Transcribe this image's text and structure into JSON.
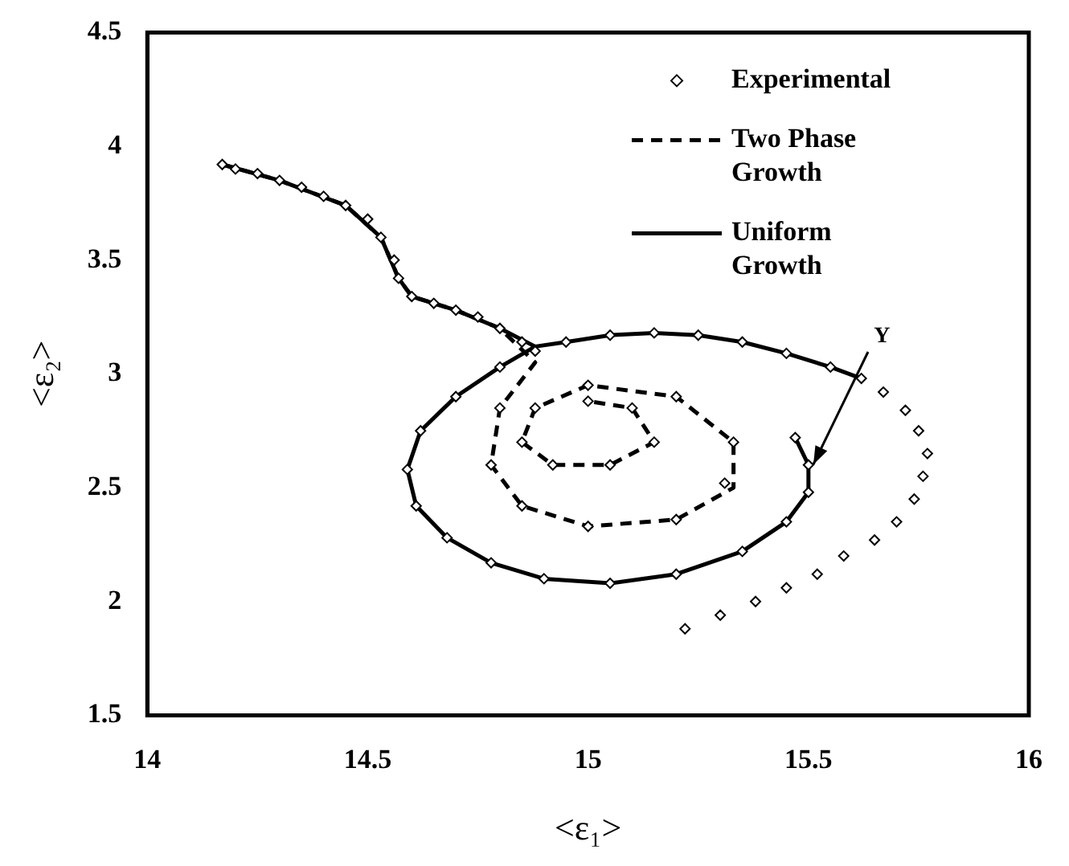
{
  "chart_data": {
    "type": "line",
    "xlabel": "<ε₁>",
    "ylabel": "<ε₂>",
    "xlim": [
      14,
      16
    ],
    "xticks": [
      14,
      14.5,
      15,
      15.5,
      16
    ],
    "ylim": [
      1.5,
      4.5
    ],
    "yticks": [
      1.5,
      2,
      2.5,
      3,
      3.5,
      4,
      4.5
    ],
    "grid": false,
    "legend": "top right",
    "annotations": [
      {
        "text": "Y",
        "x": 15.51,
        "y": 2.6
      }
    ],
    "series": [
      {
        "name": "Experimental",
        "type": "scatter",
        "marker": "diamond",
        "color": "#000000",
        "x": [
          14.17,
          14.2,
          14.25,
          14.3,
          14.35,
          14.4,
          14.45,
          14.5,
          14.53,
          14.56,
          14.57,
          14.6,
          14.65,
          14.7,
          14.75,
          14.8,
          14.85,
          14.88,
          14.95,
          15.05,
          15.15,
          15.25,
          15.35,
          15.45,
          15.55,
          15.62,
          15.67,
          15.72,
          15.75,
          15.77,
          15.76,
          15.74,
          15.7,
          15.65,
          15.58,
          15.52,
          15.45,
          15.38,
          15.3,
          15.22,
          15.47,
          15.5,
          15.5,
          15.45,
          15.35,
          15.2,
          15.05,
          14.9,
          14.78,
          14.68,
          14.61,
          14.59,
          14.62,
          14.7,
          14.8,
          14.8,
          14.78,
          14.85,
          15.0,
          15.2,
          15.31,
          15.33,
          15.2,
          15.0,
          14.88,
          14.85,
          14.92,
          15.05,
          15.15,
          15.1,
          15.0
        ],
        "values": [
          3.92,
          3.9,
          3.88,
          3.85,
          3.82,
          3.78,
          3.74,
          3.68,
          3.6,
          3.5,
          3.42,
          3.34,
          3.31,
          3.28,
          3.25,
          3.2,
          3.14,
          3.1,
          3.14,
          3.17,
          3.18,
          3.17,
          3.14,
          3.09,
          3.03,
          2.98,
          2.92,
          2.84,
          2.75,
          2.65,
          2.55,
          2.45,
          2.35,
          2.27,
          2.2,
          2.12,
          2.06,
          2.0,
          1.94,
          1.88,
          2.72,
          2.6,
          2.48,
          2.35,
          2.22,
          2.12,
          2.08,
          2.1,
          2.17,
          2.28,
          2.42,
          2.58,
          2.75,
          2.9,
          3.03,
          2.85,
          2.6,
          2.42,
          2.33,
          2.36,
          2.52,
          2.7,
          2.9,
          2.95,
          2.85,
          2.7,
          2.6,
          2.6,
          2.7,
          2.85,
          2.88
        ]
      },
      {
        "name": "Two Phase Growth",
        "type": "line",
        "line_style": "dashed",
        "marker": "none",
        "color": "#000000",
        "x": [
          14.17,
          14.3,
          14.45,
          14.53,
          14.57,
          14.6,
          14.7,
          14.8,
          14.88,
          14.8,
          14.78,
          14.85,
          15.0,
          15.2,
          15.33,
          15.33,
          15.2,
          15.0,
          14.88,
          14.85,
          14.92,
          15.05,
          15.15,
          15.1,
          15.0
        ],
        "values": [
          3.92,
          3.85,
          3.74,
          3.6,
          3.42,
          3.34,
          3.28,
          3.2,
          3.05,
          2.85,
          2.6,
          2.42,
          2.33,
          2.36,
          2.5,
          2.7,
          2.9,
          2.95,
          2.85,
          2.7,
          2.6,
          2.6,
          2.7,
          2.85,
          2.88
        ]
      },
      {
        "name": "Uniform Growth",
        "type": "line",
        "line_style": "solid",
        "marker": "none",
        "color": "#000000",
        "x": [
          14.17,
          14.3,
          14.45,
          14.53,
          14.57,
          14.6,
          14.7,
          14.8,
          14.88,
          14.95,
          15.05,
          15.15,
          15.25,
          15.35,
          15.45,
          15.55,
          15.62,
          15.55,
          15.47,
          15.5,
          15.5,
          15.45,
          15.35,
          15.2,
          15.05,
          14.9,
          14.78,
          14.68,
          14.61,
          14.59,
          14.62,
          14.7,
          14.8,
          14.88
        ],
        "values": [
          3.92,
          3.85,
          3.74,
          3.6,
          3.42,
          3.34,
          3.28,
          3.2,
          3.12,
          3.14,
          3.17,
          3.18,
          3.17,
          3.14,
          3.09,
          3.03,
          2.98,
          null,
          2.72,
          2.6,
          2.48,
          2.35,
          2.22,
          2.12,
          2.08,
          2.1,
          2.17,
          2.28,
          2.42,
          2.58,
          2.75,
          2.9,
          3.03,
          3.12
        ]
      }
    ]
  }
}
